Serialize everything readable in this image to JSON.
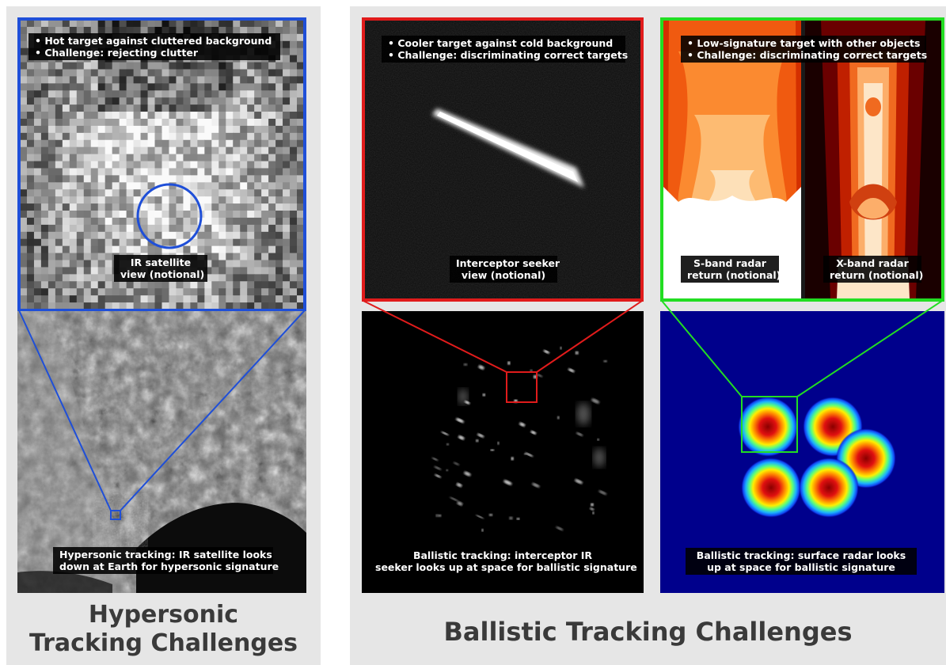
{
  "hypersonic": {
    "title_line1": "Hypersonic",
    "title_line2": "Tracking Challenges",
    "ir_view": {
      "bullet1": "• Hot target against cluttered background",
      "bullet2": "• Challenge: rejecting clutter",
      "label_line1": "IR satellite",
      "label_line2": "view (notional)"
    },
    "earth_view": {
      "caption_line1": "Hypersonic tracking: IR satellite looks",
      "caption_line2": "down at Earth for hypersonic signature"
    },
    "accent_color": "#1f4fd8"
  },
  "ballistic": {
    "title": "Ballistic Tracking Challenges",
    "seeker_view": {
      "bullet1": "• Cooler target against cold background",
      "bullet2": "• Challenge: discriminating correct targets",
      "label_line1": "Interceptor seeker",
      "label_line2": "view (notional)",
      "accent_color": "#e01b1b"
    },
    "radar_view": {
      "bullet1": "• Low-signature target with other objects",
      "bullet2": "• Challenge: discriminating correct targets",
      "s_band_line1": "S-band radar",
      "s_band_line2": "return (notional)",
      "x_band_line1": "X-band radar",
      "x_band_line2": "return (notional)",
      "accent_color": "#22dd22"
    },
    "space_view": {
      "caption_line1": "Ballistic tracking: interceptor IR",
      "caption_line2": "seeker looks up at space for ballistic signature"
    },
    "radar_map": {
      "caption_line1": "Ballistic tracking: surface radar looks",
      "caption_line2": "up at space for ballistic signature"
    }
  }
}
